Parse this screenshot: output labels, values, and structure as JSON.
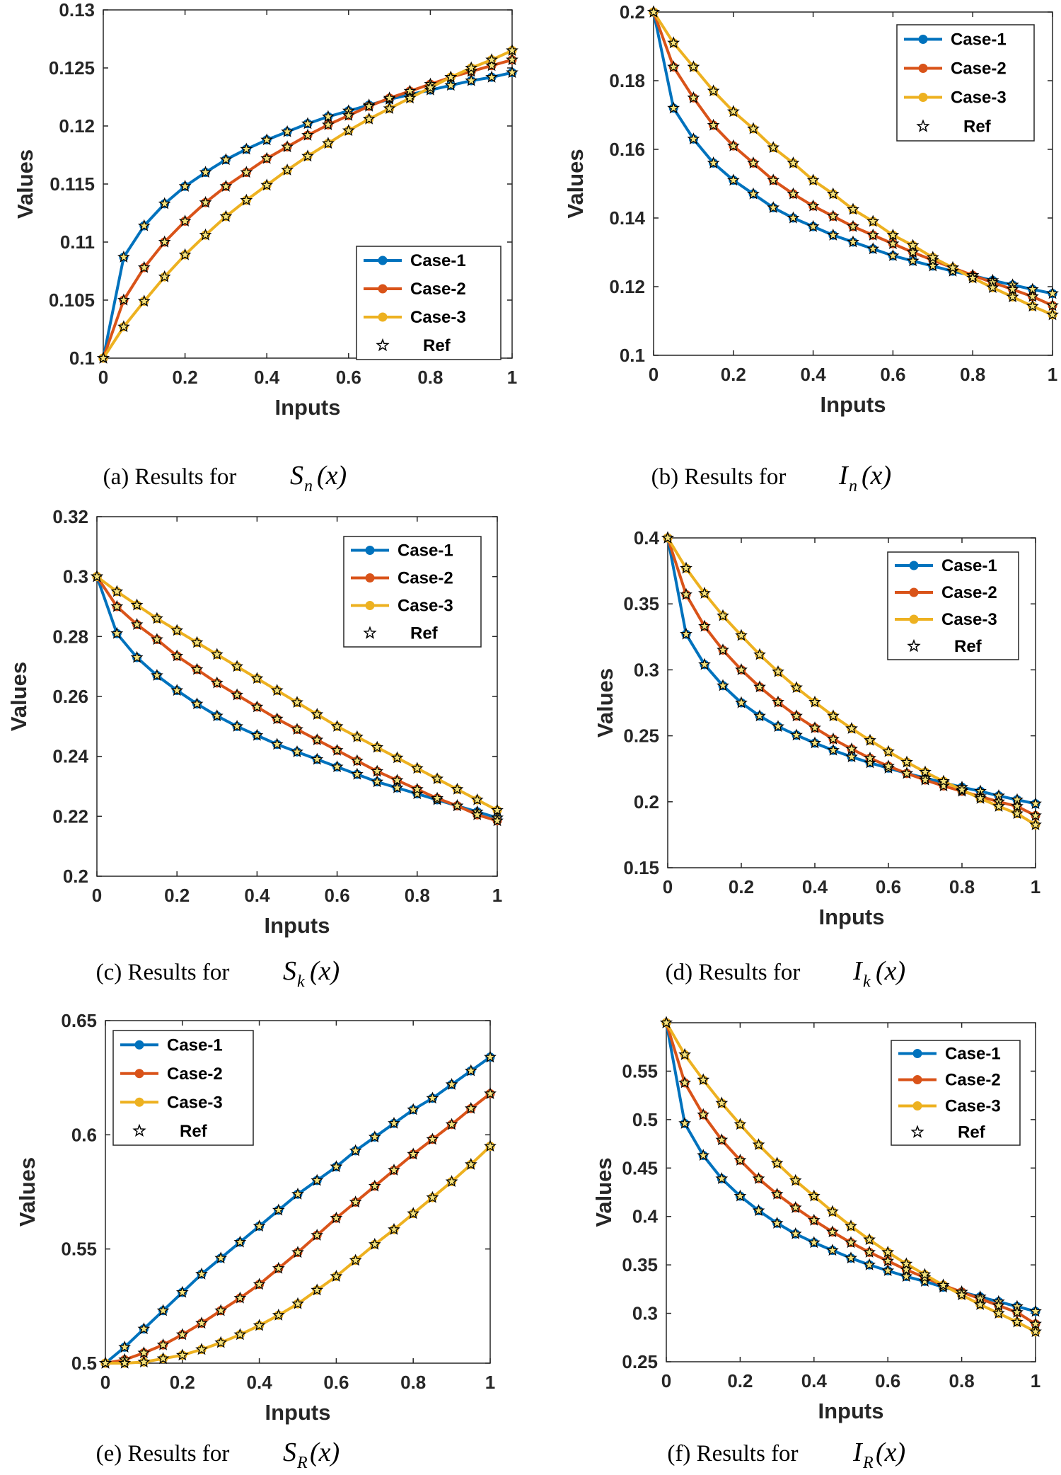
{
  "colors": {
    "case1": "#0072BD",
    "case2": "#D95319",
    "case3": "#EDB120",
    "ref_fill": "#F5E27A",
    "ref_edge": "#000000"
  },
  "chart_data": [
    {
      "type": "line",
      "id": "a",
      "caption": "(a) Results for",
      "caption_var": "S",
      "caption_sub": "n",
      "caption_arg": "(x)",
      "xlabel": "Inputs",
      "ylabel": "Values",
      "xlim": [
        0,
        1
      ],
      "ylim": [
        0.1,
        0.13
      ],
      "xticks": [
        "0",
        "0.2",
        "0.4",
        "0.6",
        "0.8",
        "1"
      ],
      "yticks": [
        "0.1",
        "0.105",
        "0.11",
        "0.115",
        "0.12",
        "0.125",
        "0.13"
      ],
      "legend": [
        "Case-1",
        "Case-2",
        "Case-3",
        "Ref"
      ],
      "legend_position": "bottom-right",
      "grid": false,
      "x": [
        0,
        0.05,
        0.1,
        0.15,
        0.2,
        0.25,
        0.3,
        0.35,
        0.4,
        0.45,
        0.5,
        0.55,
        0.6,
        0.65,
        0.7,
        0.75,
        0.8,
        0.85,
        0.9,
        0.95,
        1
      ],
      "series": [
        {
          "name": "Case-1",
          "values": [
            0.1,
            0.1087,
            0.1114,
            0.1133,
            0.1148,
            0.116,
            0.1171,
            0.118,
            0.1188,
            0.1195,
            0.1202,
            0.1208,
            0.1213,
            0.1218,
            0.1223,
            0.1227,
            0.1231,
            0.1235,
            0.1239,
            0.1242,
            0.1246
          ]
        },
        {
          "name": "Case-2",
          "values": [
            0.1,
            0.105,
            0.1078,
            0.11,
            0.1118,
            0.1134,
            0.1148,
            0.116,
            0.1172,
            0.1182,
            0.1192,
            0.1201,
            0.1209,
            0.1217,
            0.1224,
            0.123,
            0.1236,
            0.1242,
            0.1247,
            0.1252,
            0.1257
          ]
        },
        {
          "name": "Case-3",
          "values": [
            0.1,
            0.1027,
            0.1049,
            0.107,
            0.1089,
            0.1106,
            0.1122,
            0.1136,
            0.1149,
            0.1162,
            0.1174,
            0.1185,
            0.1196,
            0.1206,
            0.1215,
            0.1224,
            0.1233,
            0.1242,
            0.125,
            0.1257,
            0.1265
          ]
        }
      ]
    },
    {
      "type": "line",
      "id": "b",
      "caption": "(b) Results for",
      "caption_var": "I",
      "caption_sub": "n",
      "caption_arg": "(x)",
      "xlabel": "Inputs",
      "ylabel": "Values",
      "xlim": [
        0,
        1
      ],
      "ylim": [
        0.1,
        0.2
      ],
      "xticks": [
        "0",
        "0.2",
        "0.4",
        "0.6",
        "0.8",
        "1"
      ],
      "yticks": [
        "0.1",
        "0.12",
        "0.14",
        "0.16",
        "0.18",
        "0.2"
      ],
      "legend": [
        "Case-1",
        "Case-2",
        "Case-3",
        "Ref"
      ],
      "legend_position": "top-right",
      "grid": false,
      "x": [
        0,
        0.05,
        0.1,
        0.15,
        0.2,
        0.25,
        0.3,
        0.35,
        0.4,
        0.45,
        0.5,
        0.55,
        0.6,
        0.65,
        0.7,
        0.75,
        0.8,
        0.85,
        0.9,
        0.95,
        1
      ],
      "series": [
        {
          "name": "Case-1",
          "values": [
            0.2,
            0.172,
            0.163,
            0.156,
            0.151,
            0.147,
            0.143,
            0.14,
            0.1375,
            0.135,
            0.133,
            0.131,
            0.129,
            0.1275,
            0.126,
            0.1245,
            0.1232,
            0.1218,
            0.1205,
            0.1192,
            0.118
          ]
        },
        {
          "name": "Case-2",
          "values": [
            0.2,
            0.184,
            0.175,
            0.167,
            0.161,
            0.156,
            0.151,
            0.147,
            0.1435,
            0.1405,
            0.1375,
            0.135,
            0.1325,
            0.13,
            0.1277,
            0.1255,
            0.1233,
            0.1212,
            0.1192,
            0.1171,
            0.1145
          ]
        },
        {
          "name": "Case-3",
          "values": [
            0.2,
            0.191,
            0.184,
            0.177,
            0.171,
            0.166,
            0.1605,
            0.156,
            0.151,
            0.147,
            0.1425,
            0.139,
            0.135,
            0.132,
            0.1285,
            0.1255,
            0.1225,
            0.1197,
            0.117,
            0.1143,
            0.1118
          ]
        }
      ]
    },
    {
      "type": "line",
      "id": "c",
      "caption": "(c) Results for",
      "caption_var": "S",
      "caption_sub": "k",
      "caption_arg": "(x)",
      "xlabel": "Inputs",
      "ylabel": "Values",
      "xlim": [
        0,
        1
      ],
      "ylim": [
        0.2,
        0.32
      ],
      "xticks": [
        "0",
        "0.2",
        "0.4",
        "0.6",
        "0.8",
        "1"
      ],
      "yticks": [
        "0.2",
        "0.22",
        "0.24",
        "0.26",
        "0.28",
        "0.3",
        "0.32"
      ],
      "legend": [
        "Case-1",
        "Case-2",
        "Case-3",
        "Ref"
      ],
      "legend_position": "top-right",
      "grid": false,
      "x": [
        0,
        0.05,
        0.1,
        0.15,
        0.2,
        0.25,
        0.3,
        0.35,
        0.4,
        0.45,
        0.5,
        0.55,
        0.6,
        0.65,
        0.7,
        0.75,
        0.8,
        0.85,
        0.9,
        0.95,
        1
      ],
      "series": [
        {
          "name": "Case-1",
          "values": [
            0.3,
            0.281,
            0.273,
            0.267,
            0.262,
            0.2575,
            0.2535,
            0.25,
            0.247,
            0.244,
            0.2415,
            0.239,
            0.2365,
            0.234,
            0.2315,
            0.2295,
            0.2275,
            0.2255,
            0.2235,
            0.2215,
            0.2195
          ]
        },
        {
          "name": "Case-2",
          "values": [
            0.3,
            0.29,
            0.284,
            0.279,
            0.2735,
            0.269,
            0.2645,
            0.2605,
            0.2565,
            0.2525,
            0.249,
            0.2455,
            0.242,
            0.2385,
            0.235,
            0.232,
            0.229,
            0.226,
            0.2235,
            0.2205,
            0.2185
          ]
        },
        {
          "name": "Case-3",
          "values": [
            0.3,
            0.295,
            0.2905,
            0.286,
            0.282,
            0.278,
            0.274,
            0.27,
            0.266,
            0.262,
            0.258,
            0.254,
            0.25,
            0.2465,
            0.243,
            0.2395,
            0.236,
            0.2325,
            0.229,
            0.2255,
            0.222
          ]
        }
      ]
    },
    {
      "type": "line",
      "id": "d",
      "caption": "(d) Results for",
      "caption_var": "I",
      "caption_sub": "k",
      "caption_arg": "(x)",
      "xlabel": "Inputs",
      "ylabel": "Values",
      "xlim": [
        0,
        1
      ],
      "ylim": [
        0.15,
        0.4
      ],
      "xticks": [
        "0",
        "0.2",
        "0.4",
        "0.6",
        "0.8",
        "1"
      ],
      "yticks": [
        "0.15",
        "0.2",
        "0.25",
        "0.3",
        "0.35",
        "0.4"
      ],
      "legend": [
        "Case-1",
        "Case-2",
        "Case-3",
        "Ref"
      ],
      "legend_position": "top-right",
      "grid": false,
      "x": [
        0,
        0.05,
        0.1,
        0.15,
        0.2,
        0.25,
        0.3,
        0.35,
        0.4,
        0.45,
        0.5,
        0.55,
        0.6,
        0.65,
        0.7,
        0.75,
        0.8,
        0.85,
        0.9,
        0.95,
        1
      ],
      "series": [
        {
          "name": "Case-1",
          "values": [
            0.4,
            0.327,
            0.304,
            0.288,
            0.275,
            0.265,
            0.257,
            0.2505,
            0.2445,
            0.239,
            0.234,
            0.2295,
            0.2255,
            0.2215,
            0.218,
            0.2145,
            0.211,
            0.208,
            0.2045,
            0.2015,
            0.1985
          ]
        },
        {
          "name": "Case-2",
          "values": [
            0.4,
            0.357,
            0.333,
            0.315,
            0.3,
            0.287,
            0.2755,
            0.265,
            0.256,
            0.2475,
            0.24,
            0.233,
            0.227,
            0.2215,
            0.2165,
            0.212,
            0.208,
            0.204,
            0.2,
            0.1965,
            0.1895
          ]
        },
        {
          "name": "Case-3",
          "values": [
            0.4,
            0.377,
            0.358,
            0.341,
            0.326,
            0.3115,
            0.2985,
            0.2865,
            0.2755,
            0.265,
            0.2555,
            0.2465,
            0.238,
            0.23,
            0.2225,
            0.2155,
            0.209,
            0.2025,
            0.1965,
            0.191,
            0.1825
          ]
        }
      ]
    },
    {
      "type": "line",
      "id": "e",
      "caption": "(e) Results for",
      "caption_var": "S",
      "caption_sub": "R",
      "caption_arg": "(x)",
      "xlabel": "Inputs",
      "ylabel": "Values",
      "xlim": [
        0,
        1
      ],
      "ylim": [
        0.5,
        0.65
      ],
      "xticks": [
        "0",
        "0.2",
        "0.4",
        "0.6",
        "0.8",
        "1"
      ],
      "yticks": [
        "0.5",
        "0.55",
        "0.6",
        "0.65"
      ],
      "legend": [
        "Case-1",
        "Case-2",
        "Case-3",
        "Ref"
      ],
      "legend_position": "top-left",
      "grid": false,
      "x": [
        0,
        0.05,
        0.1,
        0.15,
        0.2,
        0.25,
        0.3,
        0.35,
        0.4,
        0.45,
        0.5,
        0.55,
        0.6,
        0.65,
        0.7,
        0.75,
        0.8,
        0.85,
        0.9,
        0.95,
        1
      ],
      "series": [
        {
          "name": "Case-1",
          "values": [
            0.5,
            0.507,
            0.515,
            0.523,
            0.531,
            0.539,
            0.546,
            0.553,
            0.56,
            0.567,
            0.574,
            0.58,
            0.586,
            0.593,
            0.599,
            0.605,
            0.611,
            0.616,
            0.622,
            0.628,
            0.634
          ]
        },
        {
          "name": "Case-2",
          "values": [
            0.5,
            0.5015,
            0.5045,
            0.508,
            0.5125,
            0.5175,
            0.523,
            0.5285,
            0.5345,
            0.5415,
            0.5485,
            0.556,
            0.5635,
            0.5705,
            0.5775,
            0.5845,
            0.5915,
            0.598,
            0.6045,
            0.6115,
            0.618
          ]
        },
        {
          "name": "Case-3",
          "values": [
            0.5,
            0.5,
            0.5005,
            0.502,
            0.5035,
            0.506,
            0.509,
            0.5125,
            0.5165,
            0.521,
            0.526,
            0.532,
            0.538,
            0.545,
            0.552,
            0.5585,
            0.5655,
            0.5725,
            0.5795,
            0.587,
            0.595
          ]
        }
      ]
    },
    {
      "type": "line",
      "id": "f",
      "caption": "(f) Results for",
      "caption_var": "I",
      "caption_sub": "R",
      "caption_arg": "(x)",
      "xlabel": "Inputs",
      "ylabel": "Values",
      "xlim": [
        0,
        1
      ],
      "ylim": [
        0.25,
        0.6
      ],
      "xticks": [
        "0",
        "0.2",
        "0.4",
        "0.6",
        "0.8",
        "1"
      ],
      "yticks": [
        "0.25",
        "0.3",
        "0.35",
        "0.4",
        "0.45",
        "0.5",
        "0.55"
      ],
      "legend": [
        "Case-1",
        "Case-2",
        "Case-3",
        "Ref"
      ],
      "legend_position": "top-right",
      "grid": false,
      "x": [
        0,
        0.05,
        0.1,
        0.15,
        0.2,
        0.25,
        0.3,
        0.35,
        0.4,
        0.45,
        0.5,
        0.55,
        0.6,
        0.65,
        0.7,
        0.75,
        0.8,
        0.85,
        0.9,
        0.95,
        1
      ],
      "series": [
        {
          "name": "Case-1",
          "values": [
            0.6,
            0.496,
            0.463,
            0.439,
            0.421,
            0.406,
            0.393,
            0.382,
            0.373,
            0.365,
            0.357,
            0.35,
            0.344,
            0.338,
            0.333,
            0.327,
            0.322,
            0.317,
            0.312,
            0.307,
            0.302
          ]
        },
        {
          "name": "Case-2",
          "values": [
            0.6,
            0.538,
            0.505,
            0.479,
            0.458,
            0.439,
            0.423,
            0.409,
            0.396,
            0.384,
            0.373,
            0.363,
            0.354,
            0.345,
            0.337,
            0.329,
            0.322,
            0.315,
            0.308,
            0.301,
            0.289
          ]
        },
        {
          "name": "Case-3",
          "values": [
            0.6,
            0.567,
            0.541,
            0.517,
            0.495,
            0.474,
            0.455,
            0.437,
            0.421,
            0.405,
            0.39,
            0.376,
            0.363,
            0.351,
            0.34,
            0.329,
            0.319,
            0.309,
            0.3,
            0.291,
            0.281
          ]
        }
      ]
    }
  ]
}
